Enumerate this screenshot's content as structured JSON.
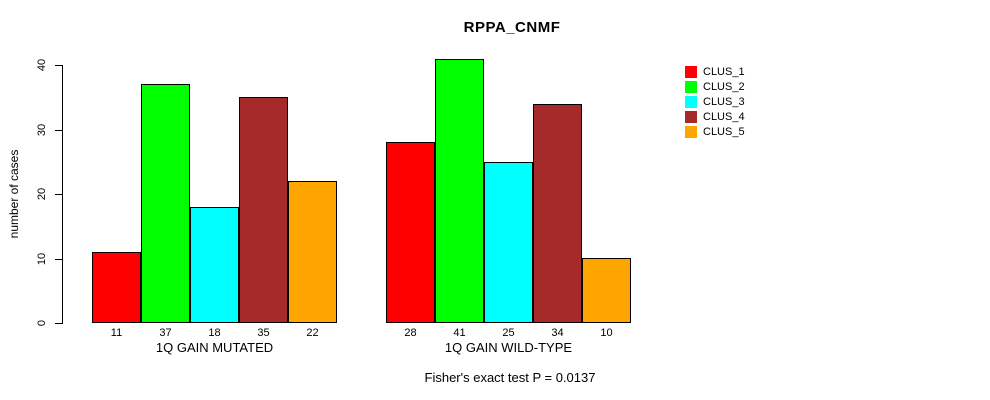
{
  "chart_data": {
    "type": "bar",
    "title": "RPPA_CNMF",
    "ylabel": "number of cases",
    "xlabel": "",
    "ylim": [
      0,
      40
    ],
    "yticks": [
      0,
      10,
      20,
      30,
      40
    ],
    "grid": false,
    "legend_position": "right-outside",
    "bar_value_labels_below_axis": true,
    "categories": [
      "1Q GAIN MUTATED",
      "1Q GAIN WILD-TYPE"
    ],
    "series": [
      {
        "name": "CLUS_1",
        "color": "#FF0000",
        "values": [
          11,
          28
        ]
      },
      {
        "name": "CLUS_2",
        "color": "#00FF00",
        "values": [
          37,
          41
        ]
      },
      {
        "name": "CLUS_3",
        "color": "#00FFFF",
        "values": [
          18,
          25
        ]
      },
      {
        "name": "CLUS_4",
        "color": "#A52A2A",
        "values": [
          35,
          34
        ]
      },
      {
        "name": "CLUS_5",
        "color": "#FFA500",
        "values": [
          22,
          10
        ]
      }
    ],
    "annotation": "Fisher's exact test P = 0.0137",
    "axis_color": "#000000"
  }
}
